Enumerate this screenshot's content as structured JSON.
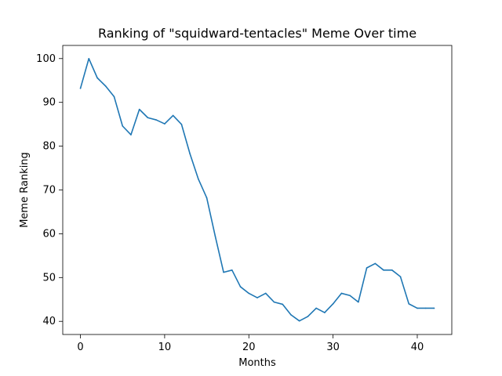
{
  "chart_data": {
    "type": "line",
    "title": "Ranking of \"squidward-tentacles\" Meme Over time",
    "xlabel": "Months",
    "ylabel": "Meme Ranking",
    "xlim": [
      -2.1,
      44.1
    ],
    "ylim": [
      37.0,
      103.0
    ],
    "xticks": [
      0,
      10,
      20,
      30,
      40
    ],
    "yticks": [
      40,
      50,
      60,
      70,
      80,
      90,
      100
    ],
    "grid": false,
    "line_color": "#1f77b4",
    "x": [
      0,
      1,
      2,
      3,
      4,
      5,
      6,
      7,
      8,
      9,
      10,
      11,
      12,
      13,
      14,
      15,
      16,
      17,
      18,
      19,
      20,
      21,
      22,
      23,
      24,
      25,
      26,
      27,
      28,
      29,
      30,
      31,
      32,
      33,
      34,
      35,
      36,
      37,
      38,
      39,
      40,
      41,
      42
    ],
    "series": [
      {
        "values": [
          93.2,
          100,
          95.6,
          93.7,
          91.3,
          84.6,
          82.6,
          88.4,
          86.5,
          86.0,
          85.1,
          87.0,
          85.0,
          78.3,
          72.5,
          68.2,
          59.5,
          51.2,
          51.7,
          47.9,
          46.4,
          45.4,
          46.4,
          44.4,
          43.9,
          41.5,
          40.1,
          41.1,
          43.0,
          42.0,
          44.0,
          46.4,
          45.9,
          44.4,
          52.2,
          53.2,
          51.7,
          51.7,
          50.2,
          44.0,
          43.0,
          43.0,
          43.0
        ]
      }
    ]
  }
}
